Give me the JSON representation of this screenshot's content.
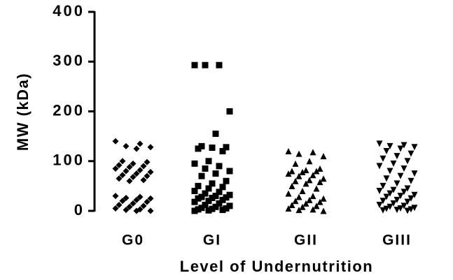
{
  "chart_data": {
    "type": "strip",
    "ylabel": "MW (kDa)",
    "xlabel": "Level of Undernutrition",
    "categories": [
      "G0",
      "GI",
      "GII",
      "GIII"
    ],
    "markers": [
      "diamond",
      "square",
      "triangle-up",
      "triangle-down"
    ],
    "color": "#000000",
    "values": [
      [
        140,
        135,
        130,
        128,
        125,
        100,
        98,
        95,
        92,
        90,
        88,
        85,
        82,
        80,
        78,
        75,
        72,
        70,
        68,
        65,
        62,
        60,
        30,
        28,
        26,
        25,
        22,
        20,
        18,
        15,
        12,
        10,
        8,
        5,
        3,
        2,
        0,
        0
      ],
      [
        293,
        293,
        293,
        200,
        155,
        130,
        128,
        127,
        125,
        120,
        100,
        95,
        90,
        85,
        80,
        75,
        70,
        60,
        55,
        50,
        48,
        45,
        40,
        38,
        35,
        32,
        30,
        28,
        27,
        26,
        25,
        22,
        20,
        18,
        15,
        12,
        10,
        8,
        6,
        5,
        4,
        3,
        2,
        1,
        0
      ],
      [
        120,
        118,
        115,
        110,
        100,
        95,
        85,
        82,
        80,
        80,
        78,
        75,
        72,
        70,
        65,
        62,
        60,
        58,
        55,
        50,
        45,
        40,
        35,
        30,
        28,
        25,
        22,
        20,
        18,
        15,
        12,
        10,
        8,
        5,
        3,
        2,
        0
      ],
      [
        135,
        132,
        130,
        128,
        125,
        120,
        115,
        110,
        105,
        100,
        95,
        90,
        85,
        80,
        75,
        70,
        65,
        60,
        55,
        50,
        45,
        42,
        40,
        38,
        35,
        32,
        30,
        28,
        25,
        22,
        20,
        18,
        15,
        12,
        10,
        8,
        6,
        5,
        4,
        3,
        2,
        1,
        0
      ]
    ],
    "ylim": [
      0,
      400
    ],
    "yticks": [
      0,
      100,
      200,
      300,
      400
    ]
  }
}
